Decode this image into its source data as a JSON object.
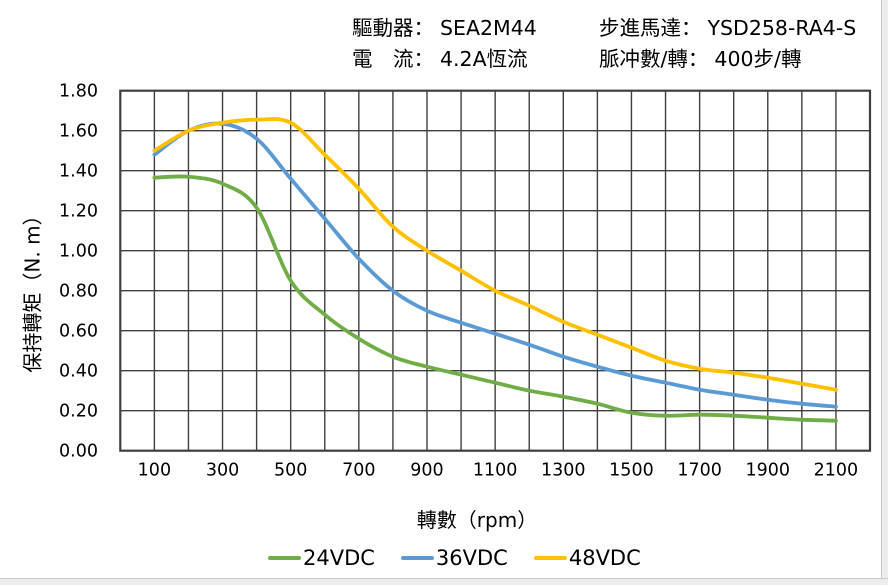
{
  "header": {
    "col1": [
      {
        "label": "驅動器：",
        "value": "SEA2M44"
      },
      {
        "label": "電　流：",
        "value": "4.2A恆流"
      }
    ],
    "col2": [
      {
        "label": "步進馬達：",
        "value": "YSD258-RA4-S"
      },
      {
        "label": "脈冲數/轉：",
        "value": "400步/轉"
      }
    ]
  },
  "chart_data": {
    "type": "line",
    "title": "",
    "xlabel": "轉數（rpm）",
    "ylabel": "保持轉矩（N. m）",
    "grid": true,
    "grid_color": "#3f3f3f",
    "legend_position": "bottom",
    "x_axis": {
      "min": 0,
      "max": 2200,
      "gridline_step": 100,
      "tick_labels": [
        100,
        300,
        500,
        700,
        900,
        1100,
        1300,
        1500,
        1700,
        1900,
        2100
      ],
      "unit": "rpm"
    },
    "y_axis": {
      "min": 0,
      "max": 1.8,
      "gridline_step": 0.2,
      "tick_decimals": 2,
      "unit": "N.m"
    },
    "x": [
      100,
      200,
      300,
      400,
      500,
      600,
      700,
      800,
      900,
      1000,
      1100,
      1200,
      1300,
      1400,
      1500,
      1600,
      1700,
      1800,
      1900,
      2000,
      2100
    ],
    "series": [
      {
        "name": "24VDC",
        "color": "#70AD47",
        "values": [
          1.365,
          1.37,
          1.335,
          1.215,
          0.85,
          0.68,
          0.56,
          0.47,
          0.42,
          0.38,
          0.34,
          0.3,
          0.27,
          0.235,
          0.19,
          0.175,
          0.18,
          0.175,
          0.165,
          0.155,
          0.15
        ]
      },
      {
        "name": "36VDC",
        "color": "#5B9BD5",
        "values": [
          1.48,
          1.6,
          1.635,
          1.56,
          1.36,
          1.16,
          0.96,
          0.8,
          0.7,
          0.64,
          0.585,
          0.53,
          0.47,
          0.42,
          0.375,
          0.34,
          0.305,
          0.28,
          0.255,
          0.235,
          0.22
        ]
      },
      {
        "name": "48VDC",
        "color": "#FFC000",
        "values": [
          1.5,
          1.6,
          1.64,
          1.655,
          1.64,
          1.48,
          1.31,
          1.12,
          1.0,
          0.9,
          0.8,
          0.725,
          0.645,
          0.58,
          0.515,
          0.45,
          0.41,
          0.39,
          0.365,
          0.335,
          0.305
        ]
      }
    ]
  }
}
